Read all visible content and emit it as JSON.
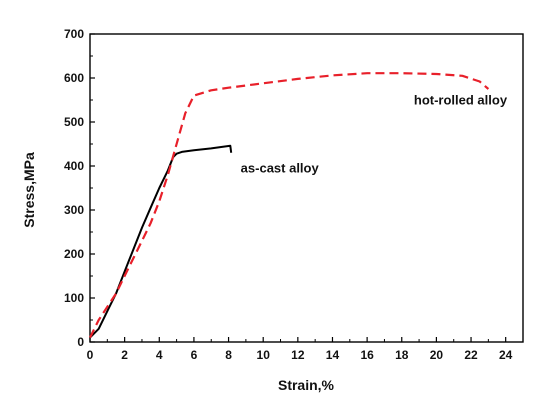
{
  "chart_data": {
    "type": "line",
    "xlabel": "Strain,%",
    "ylabel": "Stress,MPa",
    "xlim": [
      0,
      25
    ],
    "ylim": [
      0,
      700
    ],
    "xticks": [
      0,
      2,
      4,
      6,
      8,
      10,
      12,
      14,
      16,
      18,
      20,
      22,
      24
    ],
    "yticks": [
      0,
      100,
      200,
      300,
      400,
      500,
      600,
      700
    ],
    "grid": false,
    "series": [
      {
        "name": "as-cast alloy",
        "color": "#000000",
        "dash": "solid",
        "points": [
          [
            0.0,
            10
          ],
          [
            0.5,
            30
          ],
          [
            1.0,
            70
          ],
          [
            1.5,
            110
          ],
          [
            2.0,
            160
          ],
          [
            2.5,
            210
          ],
          [
            3.0,
            260
          ],
          [
            3.5,
            305
          ],
          [
            4.0,
            350
          ],
          [
            4.5,
            390
          ],
          [
            4.8,
            420
          ],
          [
            5.0,
            428
          ],
          [
            5.3,
            432
          ],
          [
            6.0,
            436
          ],
          [
            7.0,
            440
          ],
          [
            8.1,
            446
          ],
          [
            8.15,
            430
          ]
        ]
      },
      {
        "name": "hot-rolled alloy",
        "color": "#e8202a",
        "dash": "dashed",
        "points": [
          [
            0.0,
            10
          ],
          [
            0.5,
            50
          ],
          [
            1.0,
            80
          ],
          [
            1.5,
            110
          ],
          [
            2.0,
            150
          ],
          [
            2.5,
            190
          ],
          [
            3.0,
            230
          ],
          [
            3.5,
            270
          ],
          [
            4.0,
            320
          ],
          [
            4.5,
            380
          ],
          [
            5.0,
            450
          ],
          [
            5.5,
            520
          ],
          [
            6.0,
            560
          ],
          [
            7.0,
            572
          ],
          [
            8.0,
            578
          ],
          [
            10.0,
            588
          ],
          [
            12.0,
            598
          ],
          [
            14.0,
            606
          ],
          [
            16.0,
            611
          ],
          [
            18.0,
            611
          ],
          [
            20.0,
            609
          ],
          [
            21.5,
            605
          ],
          [
            22.5,
            592
          ],
          [
            23.0,
            575
          ]
        ]
      }
    ],
    "annotations": [
      {
        "text": "as-cast alloy",
        "x": 8.7,
        "y": 385
      },
      {
        "text": "hot-rolled alloy",
        "x": 18.7,
        "y": 540
      }
    ]
  }
}
